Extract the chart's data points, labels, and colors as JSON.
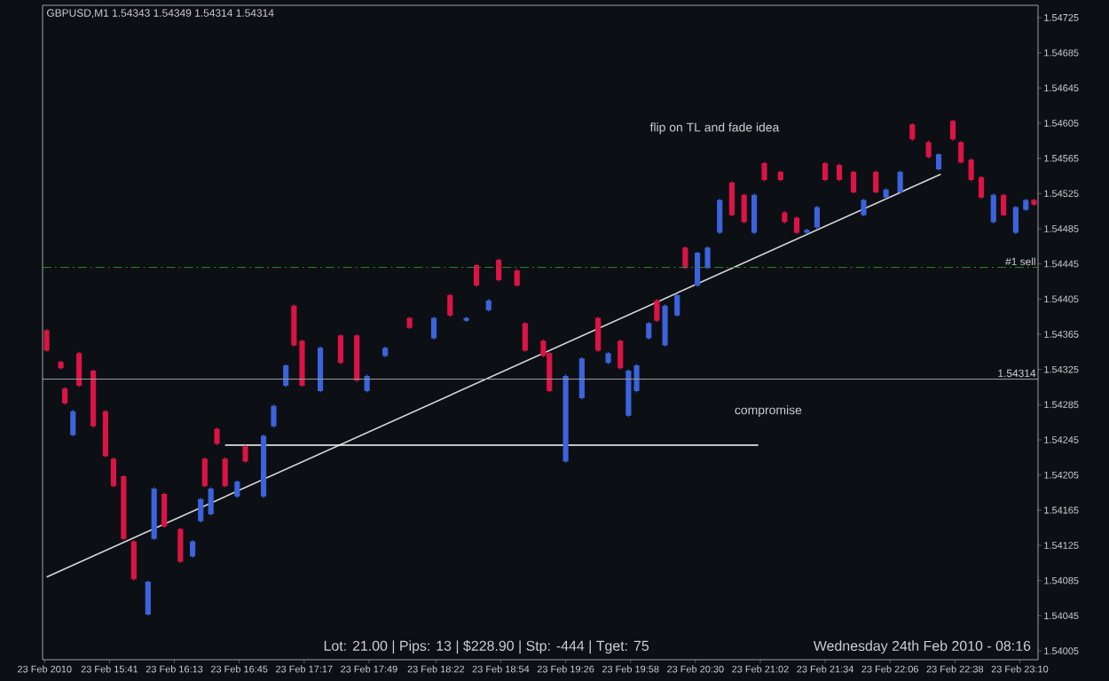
{
  "chart_data": {
    "type": "candlestick",
    "title": "GBPUSD,M1  1.54343 1.54349 1.54314 1.54314",
    "x": [
      "2010-02-23T15:10",
      "2010-02-23T15:17",
      "2010-02-23T15:19",
      "2010-02-23T15:23",
      "2010-02-23T15:26",
      "2010-02-23T15:33",
      "2010-02-23T15:39",
      "2010-02-23T15:43",
      "2010-02-23T15:48",
      "2010-02-23T15:53",
      "2010-02-23T16:00",
      "2010-02-23T16:03",
      "2010-02-23T16:08",
      "2010-02-23T16:16",
      "2010-02-23T16:22",
      "2010-02-23T16:26",
      "2010-02-23T16:28",
      "2010-02-23T16:31",
      "2010-02-23T16:34",
      "2010-02-23T16:38",
      "2010-02-23T16:44",
      "2010-02-23T16:48",
      "2010-02-23T16:57",
      "2010-02-23T17:02",
      "2010-02-23T17:08",
      "2010-02-23T17:12",
      "2010-02-23T17:16",
      "2010-02-23T17:25",
      "2010-02-23T17:35",
      "2010-02-23T17:43",
      "2010-02-23T17:48",
      "2010-02-23T17:57",
      "2010-02-23T18:09",
      "2010-02-23T18:21",
      "2010-02-23T18:29",
      "2010-02-23T18:37",
      "2010-02-23T18:42",
      "2010-02-23T18:48",
      "2010-02-23T18:53",
      "2010-02-23T19:02",
      "2010-02-23T19:06",
      "2010-02-23T19:15",
      "2010-02-23T19:18",
      "2010-02-23T19:26",
      "2010-02-23T19:34",
      "2010-02-23T19:42",
      "2010-02-23T19:47",
      "2010-02-23T19:53",
      "2010-02-23T19:57",
      "2010-02-23T20:01",
      "2010-02-23T20:07",
      "2010-02-23T20:11",
      "2010-02-23T20:15",
      "2010-02-23T20:21",
      "2010-02-23T20:25",
      "2010-02-23T20:31",
      "2010-02-23T20:36",
      "2010-02-23T20:42",
      "2010-02-23T20:48",
      "2010-02-23T20:54",
      "2010-02-23T20:59",
      "2010-02-23T21:04",
      "2010-02-23T21:12",
      "2010-02-23T21:14",
      "2010-02-23T21:20",
      "2010-02-23T21:25",
      "2010-02-23T21:30",
      "2010-02-23T21:34",
      "2010-02-23T21:41",
      "2010-02-23T21:48",
      "2010-02-23T21:53",
      "2010-02-23T21:59",
      "2010-02-23T22:04",
      "2010-02-23T22:11",
      "2010-02-23T22:17",
      "2010-02-23T22:25",
      "2010-02-23T22:30",
      "2010-02-23T22:37",
      "2010-02-23T22:41",
      "2010-02-23T22:46",
      "2010-02-23T22:51",
      "2010-02-23T22:57",
      "2010-02-23T23:02",
      "2010-02-23T23:08",
      "2010-02-23T23:13",
      "2010-02-23T23:17"
    ],
    "ohlc": [
      [
        1.54369,
        1.54371,
        1.54345,
        1.54347
      ],
      [
        1.54333,
        1.54335,
        1.54325,
        1.54327
      ],
      [
        1.54303,
        1.54305,
        1.54285,
        1.54287
      ],
      [
        1.54251,
        1.54279,
        1.54249,
        1.54277
      ],
      [
        1.54343,
        1.54345,
        1.54305,
        1.54307
      ],
      [
        1.54323,
        1.54325,
        1.54259,
        1.54261
      ],
      [
        1.54277,
        1.54279,
        1.54225,
        1.54227
      ],
      [
        1.54223,
        1.54225,
        1.54191,
        1.54193
      ],
      [
        1.54203,
        1.54205,
        1.54131,
        1.54133
      ],
      [
        1.54129,
        1.54131,
        1.54085,
        1.54087
      ],
      [
        1.54047,
        1.54085,
        1.54045,
        1.54083
      ],
      [
        1.54133,
        1.54191,
        1.54131,
        1.54189
      ],
      [
        1.54183,
        1.54185,
        1.54145,
        1.54147
      ],
      [
        1.54143,
        1.54145,
        1.54105,
        1.54107
      ],
      [
        1.54113,
        1.54131,
        1.54111,
        1.54129
      ],
      [
        1.54153,
        1.54179,
        1.54151,
        1.54177
      ],
      [
        1.54223,
        1.54225,
        1.54191,
        1.54193
      ],
      [
        1.54161,
        1.54191,
        1.54159,
        1.54189
      ],
      [
        1.54257,
        1.54259,
        1.54239,
        1.54241
      ],
      [
        1.54223,
        1.54225,
        1.54191,
        1.54193
      ],
      [
        1.54181,
        1.54199,
        1.54179,
        1.54197
      ],
      [
        1.54237,
        1.54239,
        1.54219,
        1.54221
      ],
      [
        1.54181,
        1.54251,
        1.54179,
        1.54249
      ],
      [
        1.54261,
        1.54285,
        1.54259,
        1.54283
      ],
      [
        1.54307,
        1.54331,
        1.54305,
        1.54329
      ],
      [
        1.54397,
        1.54399,
        1.54351,
        1.54353
      ],
      [
        1.54357,
        1.54359,
        1.54305,
        1.54307
      ],
      [
        1.54301,
        1.54351,
        1.54299,
        1.54349
      ],
      [
        1.54363,
        1.54365,
        1.54331,
        1.54333
      ],
      [
        1.54363,
        1.54365,
        1.54311,
        1.54313
      ],
      [
        1.54301,
        1.54319,
        1.54299,
        1.54317
      ],
      [
        1.54341,
        1.54351,
        1.54339,
        1.54349
      ],
      [
        1.54383,
        1.54385,
        1.54371,
        1.54373
      ],
      [
        1.54361,
        1.54385,
        1.54359,
        1.54383
      ],
      [
        1.54409,
        1.54411,
        1.54385,
        1.54387
      ],
      [
        1.54381,
        1.54385,
        1.54379,
        1.54383
      ],
      [
        1.54443,
        1.54445,
        1.54419,
        1.54421
      ],
      [
        1.54393,
        1.54405,
        1.54391,
        1.54403
      ],
      [
        1.54449,
        1.54451,
        1.54425,
        1.54427
      ],
      [
        1.54437,
        1.54439,
        1.54419,
        1.54421
      ],
      [
        1.54377,
        1.54379,
        1.54345,
        1.54347
      ],
      [
        1.54357,
        1.54359,
        1.54339,
        1.54341
      ],
      [
        1.54343,
        1.54345,
        1.54299,
        1.54301
      ],
      [
        1.54221,
        1.54319,
        1.54219,
        1.54317
      ],
      [
        1.54293,
        1.54339,
        1.54291,
        1.54337
      ],
      [
        1.54383,
        1.54385,
        1.54345,
        1.54347
      ],
      [
        1.54333,
        1.54345,
        1.54331,
        1.54343
      ],
      [
        1.54357,
        1.54359,
        1.54325,
        1.54327
      ],
      [
        1.54273,
        1.54325,
        1.54271,
        1.54323
      ],
      [
        1.54301,
        1.54331,
        1.54299,
        1.54329
      ],
      [
        1.54361,
        1.54379,
        1.54359,
        1.54377
      ],
      [
        1.54403,
        1.54405,
        1.54379,
        1.54381
      ],
      [
        1.54353,
        1.54399,
        1.54351,
        1.54397
      ],
      [
        1.54387,
        1.54411,
        1.54385,
        1.54409
      ],
      [
        1.54463,
        1.54465,
        1.54439,
        1.54441
      ],
      [
        1.54421,
        1.54459,
        1.54419,
        1.54457
      ],
      [
        1.54441,
        1.54465,
        1.54439,
        1.54463
      ],
      [
        1.54481,
        1.54519,
        1.54479,
        1.54517
      ],
      [
        1.54537,
        1.54539,
        1.54499,
        1.54501
      ],
      [
        1.54523,
        1.54525,
        1.54491,
        1.54493
      ],
      [
        1.54481,
        1.54525,
        1.54479,
        1.54523
      ],
      [
        1.54559,
        1.54561,
        1.54539,
        1.54541
      ],
      [
        1.54549,
        1.54551,
        1.54539,
        1.54541
      ],
      [
        1.54503,
        1.54505,
        1.54491,
        1.54493
      ],
      [
        1.54497,
        1.54499,
        1.54479,
        1.54481
      ],
      [
        1.54481,
        1.54485,
        1.54479,
        1.54483
      ],
      [
        1.54487,
        1.54511,
        1.54485,
        1.54509
      ],
      [
        1.54559,
        1.54561,
        1.54539,
        1.54541
      ],
      [
        1.54557,
        1.54559,
        1.54539,
        1.54541
      ],
      [
        1.54549,
        1.54551,
        1.54525,
        1.54527
      ],
      [
        1.54501,
        1.54519,
        1.54499,
        1.54517
      ],
      [
        1.54549,
        1.54551,
        1.54525,
        1.54527
      ],
      [
        1.54521,
        1.54531,
        1.54519,
        1.54529
      ],
      [
        1.54527,
        1.54551,
        1.54525,
        1.54549
      ],
      [
        1.54603,
        1.54605,
        1.54585,
        1.54587
      ],
      [
        1.54583,
        1.54585,
        1.54565,
        1.54567
      ],
      [
        1.54553,
        1.54571,
        1.54551,
        1.54569
      ],
      [
        1.54607,
        1.54609,
        1.54585,
        1.54587
      ],
      [
        1.54583,
        1.54585,
        1.54559,
        1.54561
      ],
      [
        1.54563,
        1.54565,
        1.54539,
        1.54541
      ],
      [
        1.54543,
        1.54545,
        1.54519,
        1.54521
      ],
      [
        1.54493,
        1.54525,
        1.54491,
        1.54523
      ],
      [
        1.54523,
        1.54525,
        1.54499,
        1.54501
      ],
      [
        1.54481,
        1.54511,
        1.54479,
        1.54509
      ],
      [
        1.54507,
        1.54519,
        1.54505,
        1.54517
      ],
      [
        1.54517,
        1.54519,
        1.54511,
        1.54513
      ]
    ],
    "colors": [
      "#dc1446",
      "#dc1446",
      "#dc1446",
      "#3c64dc",
      "#dc1446",
      "#dc1446",
      "#dc1446",
      "#dc1446",
      "#dc1446",
      "#dc1446",
      "#3c64dc",
      "#3c64dc",
      "#dc1446",
      "#dc1446",
      "#3c64dc",
      "#3c64dc",
      "#dc1446",
      "#3c64dc",
      "#dc1446",
      "#dc1446",
      "#3c64dc",
      "#dc1446",
      "#3c64dc",
      "#3c64dc",
      "#3c64dc",
      "#dc1446",
      "#dc1446",
      "#3c64dc",
      "#dc1446",
      "#dc1446",
      "#3c64dc",
      "#3c64dc",
      "#dc1446",
      "#3c64dc",
      "#dc1446",
      "#3c64dc",
      "#dc1446",
      "#3c64dc",
      "#dc1446",
      "#dc1446",
      "#dc1446",
      "#dc1446",
      "#dc1446",
      "#3c64dc",
      "#3c64dc",
      "#dc1446",
      "#3c64dc",
      "#dc1446",
      "#3c64dc",
      "#3c64dc",
      "#3c64dc",
      "#dc1446",
      "#3c64dc",
      "#3c64dc",
      "#dc1446",
      "#3c64dc",
      "#3c64dc",
      "#3c64dc",
      "#dc1446",
      "#dc1446",
      "#3c64dc",
      "#dc1446",
      "#dc1446",
      "#dc1446",
      "#dc1446",
      "#3c64dc",
      "#3c64dc",
      "#dc1446",
      "#dc1446",
      "#dc1446",
      "#3c64dc",
      "#dc1446",
      "#3c64dc",
      "#3c64dc",
      "#dc1446",
      "#dc1446",
      "#3c64dc",
      "#dc1446",
      "#dc1446",
      "#dc1446",
      "#dc1446",
      "#3c64dc",
      "#dc1446",
      "#3c64dc",
      "#3c64dc",
      "#dc1446"
    ],
    "series": [
      {
        "type": "line",
        "color": "#d8d8d8",
        "x": [
          "2010-02-23T15:10",
          "2010-02-23T22:31"
        ],
        "values": [
          1.54089,
          1.54547
        ]
      },
      {
        "type": "line",
        "color": "#ffffff",
        "x": [
          "2010-02-23T16:38",
          "2010-02-23T21:01"
        ],
        "values": [
          1.54239,
          1.54239
        ]
      }
    ],
    "xlim": [
      "2010-02-23T15:08",
      "2010-02-23T23:19"
    ],
    "ylim": [
      1.53995,
      1.54739
    ],
    "xticks": [
      {
        "value": "2010-02-23T15:09",
        "label": "23 Feb 2010"
      },
      {
        "value": "2010-02-23T15:41",
        "label": "23 Feb 15:41"
      },
      {
        "value": "2010-02-23T16:13",
        "label": "23 Feb 16:13"
      },
      {
        "value": "2010-02-23T16:45",
        "label": "23 Feb 16:45"
      },
      {
        "value": "2010-02-23T17:17",
        "label": "23 Feb 17:17"
      },
      {
        "value": "2010-02-23T17:49",
        "label": "23 Feb 17:49"
      },
      {
        "value": "2010-02-23T18:22",
        "label": "23 Feb 18:22"
      },
      {
        "value": "2010-02-23T18:54",
        "label": "23 Feb 18:54"
      },
      {
        "value": "2010-02-23T19:26",
        "label": "23 Feb 19:26"
      },
      {
        "value": "2010-02-23T19:58",
        "label": "23 Feb 19:58"
      },
      {
        "value": "2010-02-23T20:30",
        "label": "23 Feb 20:30"
      },
      {
        "value": "2010-02-23T21:02",
        "label": "23 Feb 21:02"
      },
      {
        "value": "2010-02-23T21:34",
        "label": "23 Feb 21:34"
      },
      {
        "value": "2010-02-23T22:06",
        "label": "23 Feb 22:06"
      },
      {
        "value": "2010-02-23T22:38",
        "label": "23 Feb 22:38"
      },
      {
        "value": "2010-02-23T23:10",
        "label": "23 Feb 23:10"
      }
    ],
    "yticks": [
      1.54005,
      1.54045,
      1.54085,
      1.54125,
      1.54165,
      1.54205,
      1.54245,
      1.54285,
      1.54325,
      1.54365,
      1.54405,
      1.54445,
      1.54485,
      1.54525,
      1.54565,
      1.54605,
      1.54645,
      1.54685,
      1.54725
    ],
    "ref_lines": [
      {
        "axis": "y",
        "value": 1.54441,
        "label": "#1 sell",
        "color": "#2a8a2a",
        "line_style": "dashdot"
      },
      {
        "axis": "y",
        "value": 1.54314,
        "label": "1.54314",
        "color": "#a0a0a0",
        "line_style": "solid"
      }
    ],
    "annotations": [
      "flip on TL and fade idea",
      "compromise",
      "Lot: 21.00 | Pips: 13 | $228.90 | Stp: -444 | Tget: 75",
      "Wednesday 24th Feb 2010 - 08:16"
    ]
  }
}
